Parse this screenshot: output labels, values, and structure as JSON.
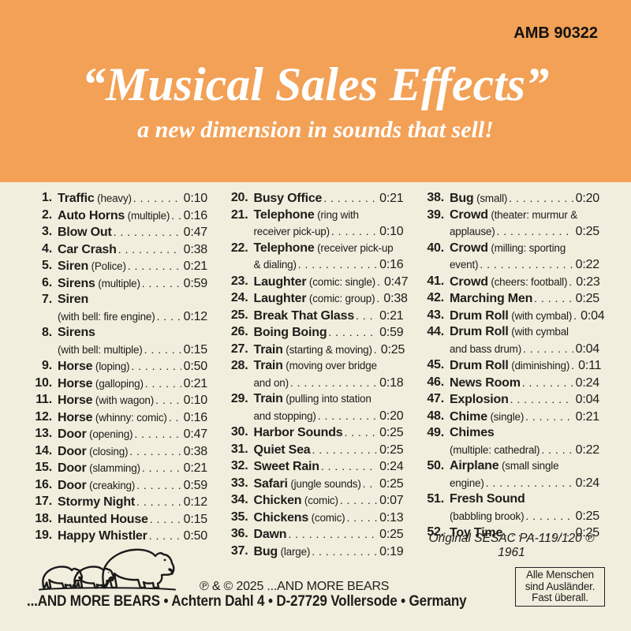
{
  "colors": {
    "header_bg": "#f2a156",
    "page_bg": "#f1eedd",
    "text": "#1d1d1b",
    "header_text": "#ffffff"
  },
  "header": {
    "catalog_number": "AMB 90322",
    "title": "“Musical Sales Effects”",
    "subtitle": "a new dimension in sounds that sell!"
  },
  "tracks": {
    "columns": [
      {
        "items": [
          {
            "num": "1.",
            "title": "Traffic",
            "desc": "(heavy)",
            "time": "0:10"
          },
          {
            "num": "2.",
            "title": "Auto Horns",
            "desc": "(multiple)",
            "time": "0:16"
          },
          {
            "num": "3.",
            "title": "Blow Out",
            "time": "0:47"
          },
          {
            "num": "4.",
            "title": "Car Crash",
            "time": "0:38"
          },
          {
            "num": "5.",
            "title": "Siren",
            "desc": "(Police)",
            "time": "0:21"
          },
          {
            "num": "6.",
            "title": "Sirens",
            "desc": "(multiple)",
            "time": "0:59"
          },
          {
            "num": "7.",
            "title": "Siren",
            "desc2": "(with bell: fire engine)",
            "time": "0:12"
          },
          {
            "num": "8.",
            "title": "Sirens",
            "desc2": "(with bell: multiple)",
            "time": "0:15"
          },
          {
            "num": "9.",
            "title": "Horse",
            "desc": "(loping)",
            "time": "0:50"
          },
          {
            "num": "10.",
            "title": "Horse",
            "desc": "(galloping)",
            "time": "0:21"
          },
          {
            "num": "11.",
            "title": "Horse",
            "desc": "(with wagon)",
            "time": "0:10"
          },
          {
            "num": "12.",
            "title": "Horse",
            "desc": "(whinny: comic)",
            "time": "0:16"
          },
          {
            "num": "13.",
            "title": "Door",
            "desc": "(opening)",
            "time": "0:47"
          },
          {
            "num": "14.",
            "title": "Door",
            "desc": "(closing)",
            "time": "0:38"
          },
          {
            "num": "15.",
            "title": "Door",
            "desc": "(slamming)",
            "time": "0:21"
          },
          {
            "num": "16.",
            "title": "Door",
            "desc": "(creaking)",
            "time": "0:59"
          },
          {
            "num": "17.",
            "title": "Stormy Night",
            "time": "0:12"
          },
          {
            "num": "18.",
            "title": "Haunted House",
            "time": "0:15"
          },
          {
            "num": "19.",
            "title": "Happy Whistler",
            "time": "0:50"
          }
        ]
      },
      {
        "items": [
          {
            "num": "20.",
            "title": "Busy Office",
            "time": "0:21"
          },
          {
            "num": "21.",
            "title": "Telephone",
            "desc": "(ring with",
            "desc2": "receiver pick-up)",
            "time": "0:10"
          },
          {
            "num": "22.",
            "title": "Telephone",
            "desc": "(receiver pick-up",
            "desc2": "& dialing)",
            "time": "0:16"
          },
          {
            "num": "23.",
            "title": "Laughter",
            "desc": "(comic: single)",
            "time": "0:47"
          },
          {
            "num": "24.",
            "title": "Laughter",
            "desc": "(comic: group)",
            "time": "0:38"
          },
          {
            "num": "25.",
            "title": "Break That Glass",
            "time": "0:21"
          },
          {
            "num": "26.",
            "title": "Boing Boing",
            "time": "0:59"
          },
          {
            "num": "27.",
            "title": "Train",
            "desc": "(starting & moving)",
            "time": "0:25"
          },
          {
            "num": "28.",
            "title": "Train",
            "desc": "(moving over bridge",
            "desc2": "and on)",
            "time": "0:18"
          },
          {
            "num": "29.",
            "title": "Train",
            "desc": "(pulling into station",
            "desc2": "and stopping)",
            "time": "0:20"
          },
          {
            "num": "30.",
            "title": "Harbor Sounds",
            "time": "0:25"
          },
          {
            "num": "31.",
            "title": "Quiet Sea",
            "time": "0:25"
          },
          {
            "num": "32.",
            "title": "Sweet Rain",
            "time": "0:24"
          },
          {
            "num": "33.",
            "title": "Safari",
            "desc": "(jungle sounds)",
            "time": "0:25"
          },
          {
            "num": "34.",
            "title": "Chicken",
            "desc": "(comic)",
            "time": "0:07"
          },
          {
            "num": "35.",
            "title": "Chickens",
            "desc": "(comic)",
            "time": "0:13"
          },
          {
            "num": "36.",
            "title": "Dawn",
            "time": "0:25"
          },
          {
            "num": "37.",
            "title": "Bug",
            "desc": "(large)",
            "time": "0:19"
          }
        ]
      },
      {
        "items": [
          {
            "num": "38.",
            "title": "Bug",
            "desc": "(small)",
            "time": "0:20"
          },
          {
            "num": "39.",
            "title": "Crowd",
            "desc": "(theater: murmur &",
            "desc2": "applause)",
            "time": "0:25"
          },
          {
            "num": "40.",
            "title": "Crowd",
            "desc": "(milling: sporting",
            "desc2": "event)",
            "time": "0:22"
          },
          {
            "num": "41.",
            "title": "Crowd",
            "desc": "(cheers: football)",
            "time": "0:23"
          },
          {
            "num": "42.",
            "title": "Marching Men",
            "time": "0:25"
          },
          {
            "num": "43.",
            "title": "Drum Roll",
            "desc": "(with cymbal)",
            "time": "0:04"
          },
          {
            "num": "44.",
            "title": "Drum Roll",
            "desc": "(with cymbal",
            "desc2": "and bass drum)",
            "time": "0:04"
          },
          {
            "num": "45.",
            "title": "Drum Roll",
            "desc": "(diminishing)",
            "time": "0:11"
          },
          {
            "num": "46.",
            "title": "News Room",
            "time": "0:24"
          },
          {
            "num": "47.",
            "title": "Explosion",
            "time": "0:04"
          },
          {
            "num": "48.",
            "title": "Chime",
            "desc": "(single)",
            "time": "0:21"
          },
          {
            "num": "49.",
            "title": "Chimes",
            "desc2": "(multiple: cathedral)",
            "time": "0:22"
          },
          {
            "num": "50.",
            "title": "Airplane",
            "desc": "(small single",
            "desc2": "engine)",
            "time": "0:24"
          },
          {
            "num": "51.",
            "title": "Fresh Sound",
            "desc2": "(babbling brook)",
            "time": "0:25"
          },
          {
            "num": "52.",
            "title": "Toy Time",
            "time": "0:25"
          }
        ]
      }
    ],
    "footnote": "Original SESAC PA-119/120 ℗ 1961"
  },
  "footer": {
    "logo_icon": "bears-family-walking",
    "copyright_line": "℗ & © 2025 ...AND MORE BEARS",
    "address_line": "...AND MORE BEARS • Achtern Dahl 4 • D-27729 Vollersode • Germany",
    "note_box_lines": [
      "Alle Menschen",
      "sind Ausländer.",
      "Fast überall."
    ]
  }
}
